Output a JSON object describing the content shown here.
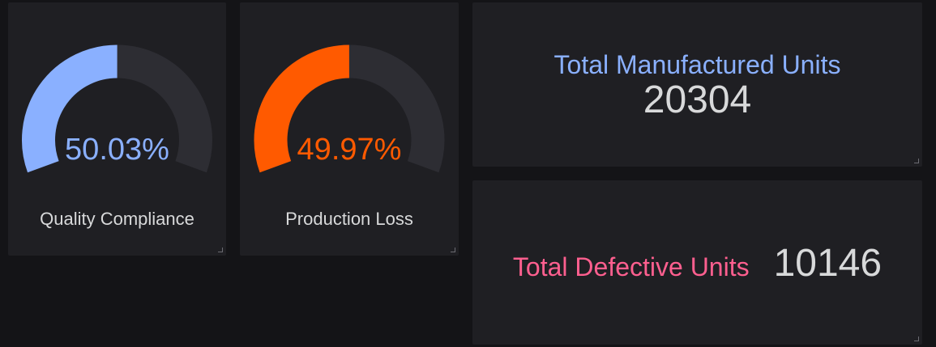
{
  "colors": {
    "page_background": "#141417",
    "panel_background": "#1f1f23",
    "gauge_track": "#2d2d33",
    "quality_accent": "#8ab0ff",
    "loss_accent": "#ff5a00",
    "manufactured_title": "#8ab0ff",
    "defective_title": "#ff5f8f",
    "stat_value": "#d8d9da"
  },
  "gauges": [
    {
      "label": "Quality Compliance",
      "value_text": "50.03%",
      "value": 50.03,
      "max": 100,
      "color": "#8ab0ff"
    },
    {
      "label": "Production Loss",
      "value_text": "49.97%",
      "value": 49.97,
      "max": 100,
      "color": "#ff5a00"
    }
  ],
  "stats": {
    "manufactured": {
      "title": "Total Manufactured Units",
      "value": "20304"
    },
    "defective": {
      "title": "Total Defective Units",
      "value": "10146"
    }
  }
}
